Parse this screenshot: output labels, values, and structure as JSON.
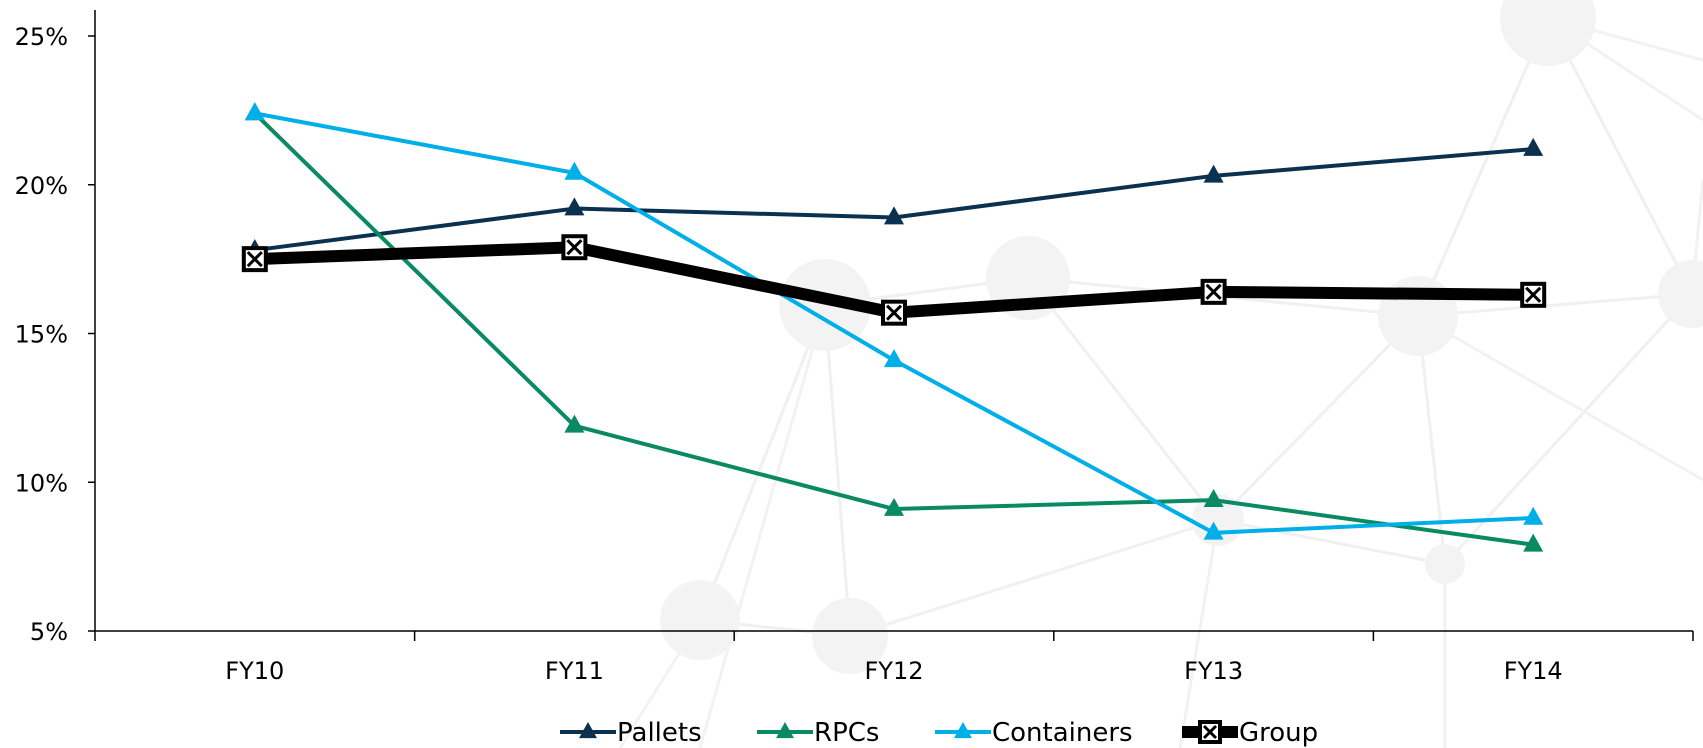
{
  "chart_data": {
    "type": "line",
    "title": "",
    "xlabel": "",
    "ylabel": "",
    "categories": [
      "FY10",
      "FY11",
      "FY12",
      "FY13",
      "FY14"
    ],
    "ylim": [
      5,
      25
    ],
    "yticks": [
      5,
      10,
      15,
      20,
      25
    ],
    "ytick_labels": [
      "5%",
      "10%",
      "15%",
      "20%",
      "25%"
    ],
    "grid": false,
    "legend_position": "bottom",
    "series": [
      {
        "name": "Pallets",
        "values": [
          17.8,
          19.2,
          18.9,
          20.3,
          21.2
        ],
        "color": "#0b3150",
        "marker": "triangle",
        "line_width": "normal"
      },
      {
        "name": "RPCs",
        "values": [
          22.4,
          11.9,
          9.1,
          9.4,
          7.9
        ],
        "color": "#0a8a62",
        "marker": "triangle",
        "line_width": "normal"
      },
      {
        "name": "Containers",
        "values": [
          22.4,
          20.4,
          14.1,
          8.3,
          8.8
        ],
        "color": "#00aee8",
        "marker": "triangle",
        "line_width": "normal"
      },
      {
        "name": "Group",
        "values": [
          17.5,
          17.9,
          15.7,
          16.4,
          16.3
        ],
        "color": "#000000",
        "marker": "x-box",
        "line_width": "bold"
      }
    ]
  }
}
